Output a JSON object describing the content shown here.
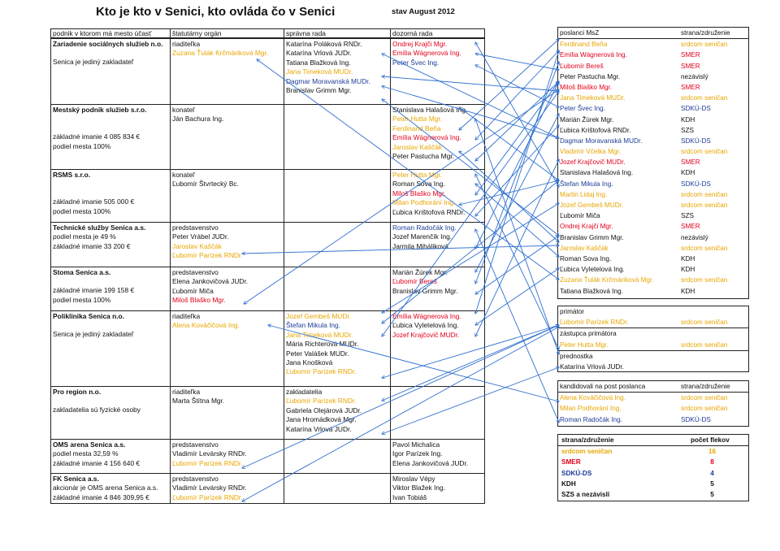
{
  "title": "Kto je kto v Senici, kto ovláda čo v Senici",
  "date_note": "stav August 2012",
  "colors": {
    "srdcom": "#e8a600",
    "smer": "#e3001b",
    "sdku": "#1d3c96",
    "neutral": "#111111",
    "arrow": "#2e6fcf"
  },
  "headers": [
    "podnik v ktorom má mesto účasť",
    "štatutárny orgán",
    "správna rada",
    "dozorná rada"
  ],
  "orgs": [
    {
      "lines": [
        {
          "t": "Zariadenie sociálnych služieb n.o.",
          "b": true
        },
        {
          "t": ""
        },
        {
          "t": "Senica je jediný zakladateľ"
        }
      ],
      "statutory": [
        {
          "t": "riaditeľka",
          "p": "neutral"
        },
        {
          "t": "Zuzana Ťulák Krčmáriková Mgr.",
          "p": "srdcom"
        }
      ],
      "board": [
        {
          "t": "Katarína Poláková RNDr.",
          "p": "neutral"
        },
        {
          "t": "Katarína Vrlová JUDr.",
          "p": "neutral"
        },
        {
          "t": "Tatiana Blažková Ing.",
          "p": "neutral"
        },
        {
          "t": "Jana Timeková MUDr.",
          "p": "srdcom"
        },
        {
          "t": "Dagmar Moravanská MUDr.",
          "p": "sdku"
        },
        {
          "t": "Branislav Grimm Mgr.",
          "p": "neutral"
        }
      ],
      "supervisory": [
        {
          "t": "Ondrej Krajči Mgr.",
          "p": "smer"
        },
        {
          "t": "Emília Wágnerová Ing.",
          "p": "smer"
        },
        {
          "t": "Peter Švec Ing.",
          "p": "sdku"
        }
      ]
    },
    {
      "lines": [
        {
          "t": "Mestský podnik služieb s.r.o.",
          "b": true
        },
        {
          "t": ""
        },
        {
          "t": ""
        },
        {
          "t": "základné imanie 4 085 834 €"
        },
        {
          "t": "podiel mesta 100%"
        }
      ],
      "statutory": [
        {
          "t": "konateľ",
          "p": "neutral"
        },
        {
          "t": "Ján Bachura Ing.",
          "p": "neutral"
        }
      ],
      "board": [],
      "supervisory": [
        {
          "t": "Stanislava Halašová Ing.",
          "p": "neutral"
        },
        {
          "t": "Peter Hutta Mgr.",
          "p": "srdcom"
        },
        {
          "t": "Ferdinand Beňa",
          "p": "srdcom"
        },
        {
          "t": "Emília Wágnerová Ing.",
          "p": "smer"
        },
        {
          "t": "Jaroslav Kaščák",
          "p": "srdcom"
        },
        {
          "t": "Peter Pastucha Mgr.",
          "p": "neutral"
        }
      ]
    },
    {
      "lines": [
        {
          "t": "RSMS s.r.o.",
          "b": true
        },
        {
          "t": ""
        },
        {
          "t": ""
        },
        {
          "t": "základné imanie 505 000 €"
        },
        {
          "t": "podiel mesta 100%"
        }
      ],
      "statutory": [
        {
          "t": "konateľ",
          "p": "neutral"
        },
        {
          "t": "Ľubomír Štvrtecký Bc.",
          "p": "neutral"
        }
      ],
      "board": [],
      "supervisory": [
        {
          "t": "Peter Hutta Mgr.",
          "p": "srdcom"
        },
        {
          "t": "Roman Sova Ing.",
          "p": "neutral"
        },
        {
          "t": "Miloš Blaško Mgr.",
          "p": "smer"
        },
        {
          "t": "Milan Podhorání Ing.",
          "p": "srdcom"
        },
        {
          "t": "Ľubica Krištofová RNDr.",
          "p": "neutral"
        }
      ]
    },
    {
      "lines": [
        {
          "t": "Technické služby Senica a.s.",
          "b": true
        },
        {
          "t": "podiel mesta je 49 %"
        },
        {
          "t": "základné imanie 33 200 €"
        }
      ],
      "statutory": [
        {
          "t": "predstavenstvo",
          "p": "neutral"
        },
        {
          "t": "Peter Vrábel JUDr.",
          "p": "neutral"
        },
        {
          "t": "Jaroslav Kaščák",
          "p": "srdcom"
        },
        {
          "t": "Ľubomír Parízek RNDr.",
          "p": "srdcom"
        }
      ],
      "board": [],
      "supervisory": [
        {
          "t": "Roman Radočák Ing.",
          "p": "sdku"
        },
        {
          "t": "Jozef Marenčík Ing.",
          "p": "neutral"
        },
        {
          "t": "Jarmila Miháliková",
          "p": "neutral"
        }
      ]
    },
    {
      "lines": [
        {
          "t": "Stoma Senica a.s.",
          "b": true
        },
        {
          "t": ""
        },
        {
          "t": "základné imanie 199 158 €"
        },
        {
          "t": "podiel mesta 100%"
        }
      ],
      "statutory": [
        {
          "t": "predstavenstvo",
          "p": "neutral"
        },
        {
          "t": "Elena Jankovičová JUDr.",
          "p": "neutral"
        },
        {
          "t": "Ľubomír Miča",
          "p": "neutral"
        },
        {
          "t": "Miloš Blaško Mgr.",
          "p": "smer"
        }
      ],
      "board": [],
      "supervisory": [
        {
          "t": "Marián Žúrek Mgr.",
          "p": "neutral"
        },
        {
          "t": "Ľubomír Bereš",
          "p": "smer"
        },
        {
          "t": "Branislav Grimm Mgr.",
          "p": "neutral"
        }
      ]
    },
    {
      "lines": [
        {
          "t": "Poliklinika Senica n.o.",
          "b": true
        },
        {
          "t": ""
        },
        {
          "t": "Senica je jediný zakladateľ"
        }
      ],
      "statutory": [
        {
          "t": "riaditeľka",
          "p": "neutral"
        },
        {
          "t": "Alena Kováčičová Ing.",
          "p": "srdcom"
        }
      ],
      "board": [
        {
          "t": "Jozef Gembeš MUDr.",
          "p": "srdcom"
        },
        {
          "t": "Štefan Mikula Ing.",
          "p": "sdku"
        },
        {
          "t": "Jana Timeková MUDr.",
          "p": "srdcom"
        },
        {
          "t": "Mária Richterová MUDr.",
          "p": "neutral"
        },
        {
          "t": "Peter Valášek MUDr.",
          "p": "neutral"
        },
        {
          "t": "Jana Knošková",
          "p": "neutral"
        },
        {
          "t": "Ľubomír Parízek RNDr.",
          "p": "srdcom"
        }
      ],
      "supervisory": [
        {
          "t": "Emília Wágnerová Ing.",
          "p": "smer"
        },
        {
          "t": "Ľubica Vyletelová Ing.",
          "p": "neutral"
        },
        {
          "t": "Jozef Krajčovič MUDr.",
          "p": "smer"
        }
      ]
    },
    {
      "lines": [
        {
          "t": "Pro region n.o.",
          "b": true
        },
        {
          "t": ""
        },
        {
          "t": "zakladatelia sú fyzické osoby"
        }
      ],
      "statutory": [
        {
          "t": "riaditeľka",
          "p": "neutral"
        },
        {
          "t": "Marta Štítna Mgr.",
          "p": "neutral"
        }
      ],
      "board": [
        {
          "t": "zakladatelia",
          "p": "neutral"
        },
        {
          "t": "Ľubomír Parízek RNDr.",
          "p": "srdcom"
        },
        {
          "t": "Gabriela Olejárová JUDr.",
          "p": "neutral"
        },
        {
          "t": "Jana Hromádková Mgr.",
          "p": "neutral"
        },
        {
          "t": "Katarína Vrlová JUDr.",
          "p": "neutral"
        }
      ],
      "supervisory": []
    },
    {
      "lines": [
        {
          "t": "OMS arena Senica a.s.",
          "b": true
        },
        {
          "t": "podiel mesta 32,59 %"
        },
        {
          "t": "základné imanie 4 156 640 €"
        }
      ],
      "statutory": [
        {
          "t": "predstavenstvo",
          "p": "neutral"
        },
        {
          "t": "Vladimír Levársky RNDr.",
          "p": "neutral"
        },
        {
          "t": "Ľubomír Parízek RNDr.",
          "p": "srdcom"
        }
      ],
      "board": [],
      "supervisory": [
        {
          "t": "Pavol Michalica",
          "p": "neutral"
        },
        {
          "t": "Igor Parízek Ing.",
          "p": "neutral"
        },
        {
          "t": "Elena Jankovičová JUDr.",
          "p": "neutral"
        }
      ]
    },
    {
      "lines": [
        {
          "t": "FK Senica a.s.",
          "b": true
        },
        {
          "t": "akcionár je OMS arena Senica a.s."
        },
        {
          "t": "základné imanie 4 846 309,95 €"
        }
      ],
      "statutory": [
        {
          "t": "predstavenstvo",
          "p": "neutral"
        },
        {
          "t": "Vladimír Levársky RNDr.",
          "p": "neutral"
        },
        {
          "t": "Ľubomír Parízek RNDr.",
          "p": "srdcom"
        }
      ],
      "board": [],
      "supervisory": [
        {
          "t": "Miroslav Vépy",
          "p": "neutral"
        },
        {
          "t": "Viktor Blažek Ing.",
          "p": "neutral"
        },
        {
          "t": "Ivan Tobiáš",
          "p": "neutral"
        }
      ]
    }
  ],
  "deputies": {
    "header": [
      "poslanci MsZ",
      "strana/združenie"
    ],
    "rows": [
      {
        "name": "Ferdinand Beňa",
        "party": "srdcom seničan",
        "p": "srdcom"
      },
      {
        "name": "Emília Wágnerová Ing.",
        "party": "SMER",
        "p": "smer"
      },
      {
        "name": "Ľubomír Bereš",
        "party": "SMER",
        "p": "smer"
      },
      {
        "name": "Peter Pastucha Mgr.",
        "party": "nezávislý",
        "p": "neutral"
      },
      {
        "name": "Miloš Blaško Mgr.",
        "party": "SMER",
        "p": "smer"
      },
      {
        "name": "Jana Timeková MUDr.",
        "party": "srdcom seničan",
        "p": "srdcom"
      },
      {
        "name": "Peter Švec Ing.",
        "party": "SDKÚ-DS",
        "p": "sdku"
      },
      {
        "name": "Marián Žúrek Mgr.",
        "party": "KDH",
        "p": "neutral"
      },
      {
        "name": "Ľubica Krištofová RNDr.",
        "party": "SZS",
        "p": "neutral"
      },
      {
        "name": "Dagmar Moravanská MUDr.",
        "party": "SDKÚ-DS",
        "p": "sdku"
      },
      {
        "name": "Vladimír Včelka Mgr.",
        "party": "srdcom seničan",
        "p": "srdcom"
      },
      {
        "name": "Jozef Krajčovič MUDr.",
        "party": "SMER",
        "p": "smer"
      },
      {
        "name": "Stanislava Halašová Ing.",
        "party": "KDH",
        "p": "neutral"
      },
      {
        "name": "Štefan Mikula Ing.",
        "party": "SDKÚ-DS",
        "p": "sdku"
      },
      {
        "name": "Martin Lidaj Ing.",
        "party": "srdcom seničan",
        "p": "srdcom"
      },
      {
        "name": "Jozef Gembeš MUDr.",
        "party": "srdcom seničan",
        "p": "srdcom"
      },
      {
        "name": "Ľubomír Miča",
        "party": "SZS",
        "p": "neutral"
      },
      {
        "name": "Ondrej Krajči Mgr.",
        "party": "SMER",
        "p": "smer"
      },
      {
        "name": "Branislav Grimm Mgr.",
        "party": "nezávislý",
        "p": "neutral"
      },
      {
        "name": "Jaroslav Kaščák",
        "party": "srdcom seničan",
        "p": "srdcom"
      },
      {
        "name": "Roman Sova Ing.",
        "party": "KDH",
        "p": "neutral"
      },
      {
        "name": "Ľubica Vyletelová Ing.",
        "party": "KDH",
        "p": "neutral"
      },
      {
        "name": "Zuzana Ťulák Krčmáriková Mgr.",
        "party": "srdcom seničan",
        "p": "srdcom"
      },
      {
        "name": "Tatiana Blažková Ing.",
        "party": "KDH",
        "p": "neutral"
      }
    ]
  },
  "mayor": {
    "rows": [
      {
        "name": "primátor",
        "party": "",
        "p": "neutral"
      },
      {
        "name": "Ľubomír Parízek RNDr.",
        "party": "srdcom seničan",
        "p": "srdcom"
      },
      {
        "name": "zástupca primátora",
        "party": "",
        "p": "neutral"
      },
      {
        "name": "Peter Hutta Mgr.",
        "party": "srdcom seničan",
        "p": "srdcom"
      },
      {
        "name": "prednostka",
        "party": "",
        "p": "neutral"
      },
      {
        "name": "Katarína Vrlová JUDr.",
        "party": "",
        "p": "neutral"
      }
    ]
  },
  "candidates": {
    "header": [
      "kandidovali na post poslanca",
      "strana/združenie"
    ],
    "rows": [
      {
        "name": "Alena Kováčičová Ing.",
        "party": "srdcom seničan",
        "p": "srdcom"
      },
      {
        "name": "Milan Podhorání Ing.",
        "party": "srdcom seničan",
        "p": "srdcom"
      },
      {
        "name": "Roman Radočák Ing.",
        "party": "SDKÚ-DS",
        "p": "sdku"
      }
    ]
  },
  "summary": {
    "header": [
      "strana/združenie",
      "počet flekov"
    ],
    "rows": [
      {
        "name": "srdcom seničan",
        "count": "16",
        "p": "srdcom"
      },
      {
        "name": "SMER",
        "count": "8",
        "p": "smer"
      },
      {
        "name": "SDKÚ-DS",
        "count": "4",
        "p": "sdku"
      },
      {
        "name": "KDH",
        "count": "5",
        "p": "neutral"
      },
      {
        "name": "SZS a nezávislí",
        "count": "5",
        "p": "neutral"
      }
    ]
  }
}
